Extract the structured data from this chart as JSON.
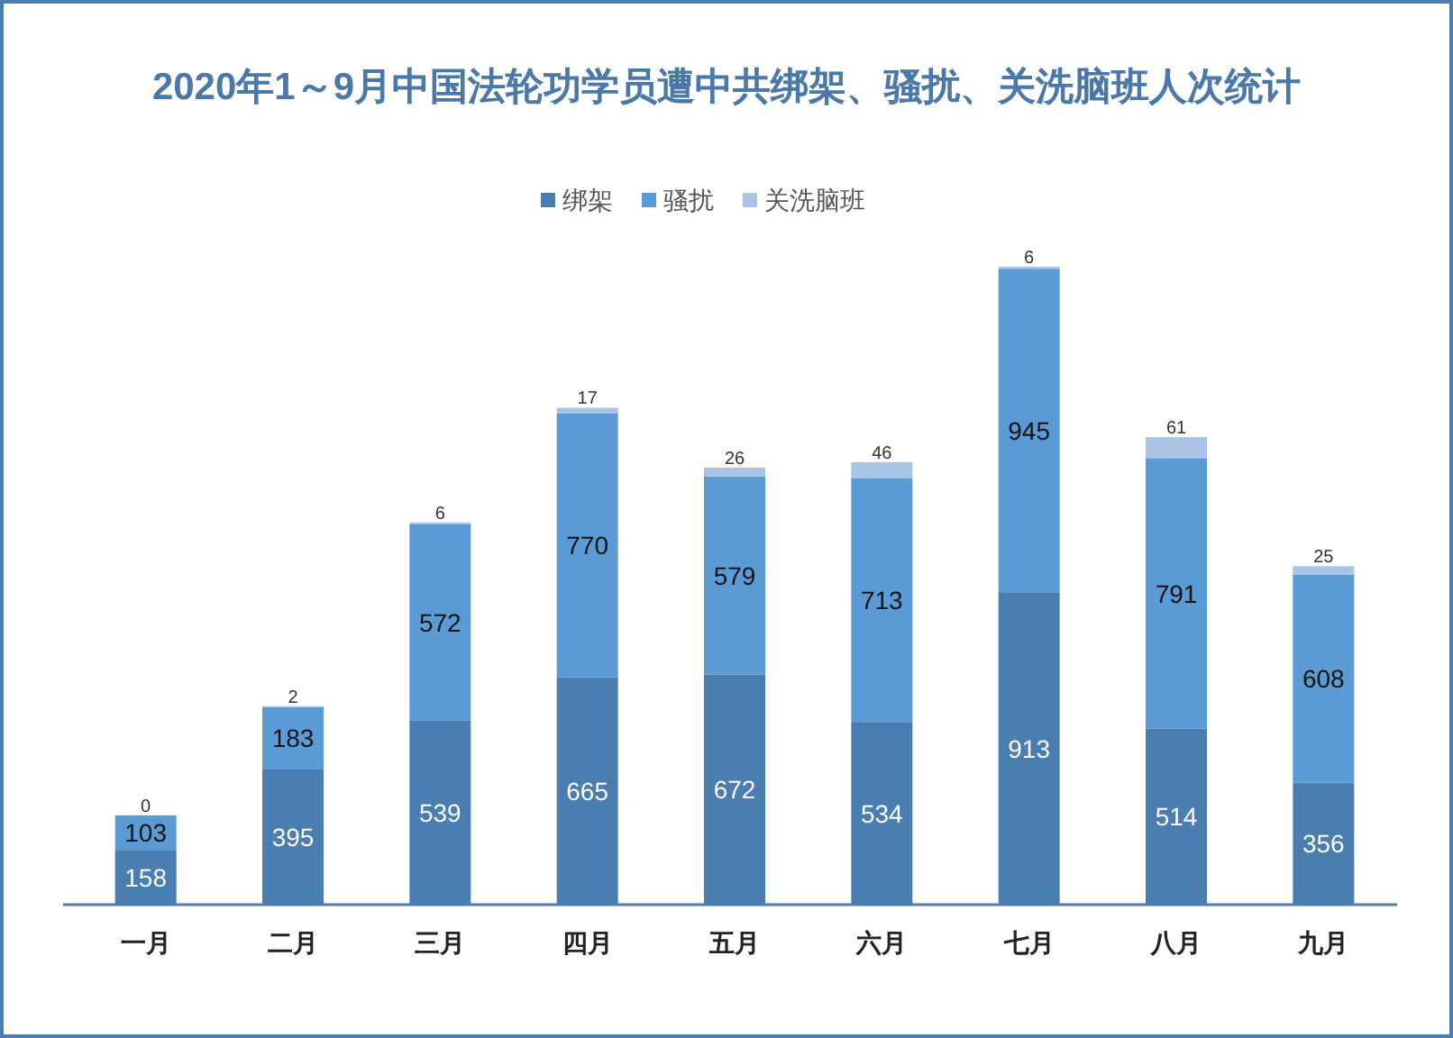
{
  "chart_data": {
    "type": "bar",
    "stacked": true,
    "title": "2020年1～9月中国法轮功学员遭中共绑架、骚扰、关洗脑班人次统计",
    "categories": [
      "一月",
      "二月",
      "三月",
      "四月",
      "五月",
      "六月",
      "七月",
      "八月",
      "九月"
    ],
    "series": [
      {
        "name": "绑架",
        "color": "#4a7eb0",
        "values": [
          158,
          395,
          539,
          665,
          672,
          534,
          913,
          514,
          356
        ]
      },
      {
        "name": "骚扰",
        "color": "#5b9bd5",
        "values": [
          103,
          183,
          572,
          770,
          579,
          713,
          945,
          791,
          608
        ]
      },
      {
        "name": "关洗脑班",
        "color": "#a9c4e6",
        "values": [
          0,
          2,
          6,
          17,
          26,
          46,
          6,
          61,
          25
        ]
      }
    ],
    "data_labels": true,
    "legend": "top"
  }
}
